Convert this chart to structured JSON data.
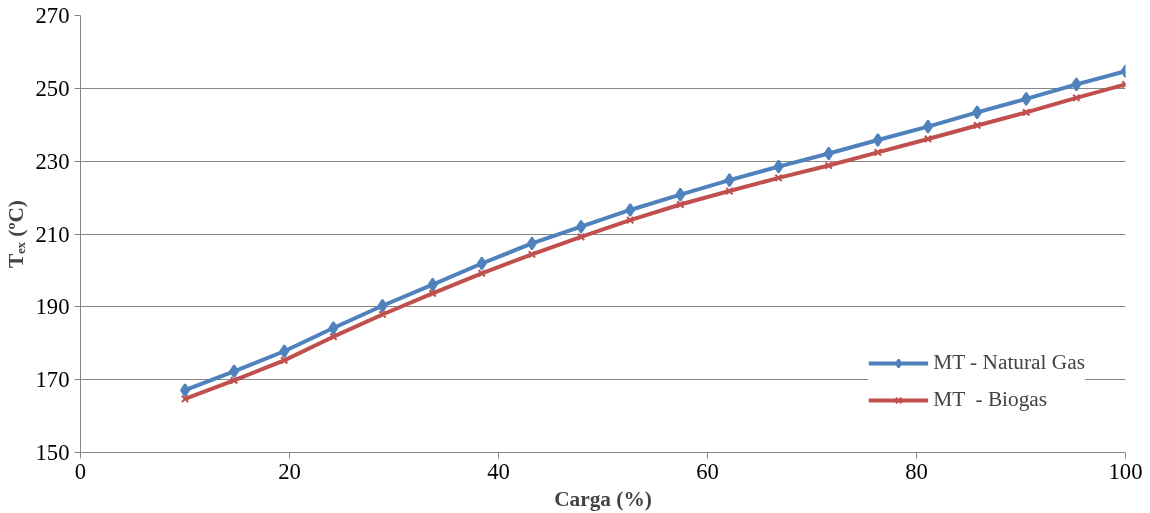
{
  "chart_data": {
    "type": "line",
    "xlabel": "Carga (%)",
    "ylabel": "Tₑₓ (ºC)",
    "x": [
      10,
      14.7,
      19.5,
      24.2,
      28.9,
      33.7,
      38.4,
      43.2,
      47.9,
      52.6,
      57.4,
      62.1,
      66.8,
      71.6,
      76.3,
      81.1,
      85.8,
      90.5,
      95.3,
      100
    ],
    "series": [
      {
        "name": "MT - Natural Gas",
        "color": "#4f81bd",
        "marker": "diamond",
        "values": [
          167.1,
          172.3,
          177.8,
          184.2,
          190.3,
          196.1,
          201.9,
          207.4,
          212,
          216.6,
          220.8,
          224.8,
          228.5,
          232.1,
          235.8,
          239.5,
          243.4,
          247.1,
          251.1,
          254.7
        ]
      },
      {
        "name": "MT  - Biogas",
        "color": "#c0504d",
        "marker": "cross",
        "values": [
          164.7,
          169.8,
          175.3,
          181.8,
          187.9,
          193.7,
          199.2,
          204.4,
          209.2,
          213.8,
          218.1,
          221.8,
          225.4,
          228.8,
          232.4,
          236.1,
          239.8,
          243.4,
          247.4,
          251.1
        ]
      }
    ],
    "xlim": [
      0,
      100
    ],
    "xticks": [
      0,
      20,
      40,
      60,
      80,
      100
    ],
    "ylim": [
      150,
      270
    ],
    "yticks": [
      150,
      170,
      190,
      210,
      230,
      250,
      270
    ],
    "grid": "y",
    "legend": "bottom right",
    "line_style": "solid"
  }
}
